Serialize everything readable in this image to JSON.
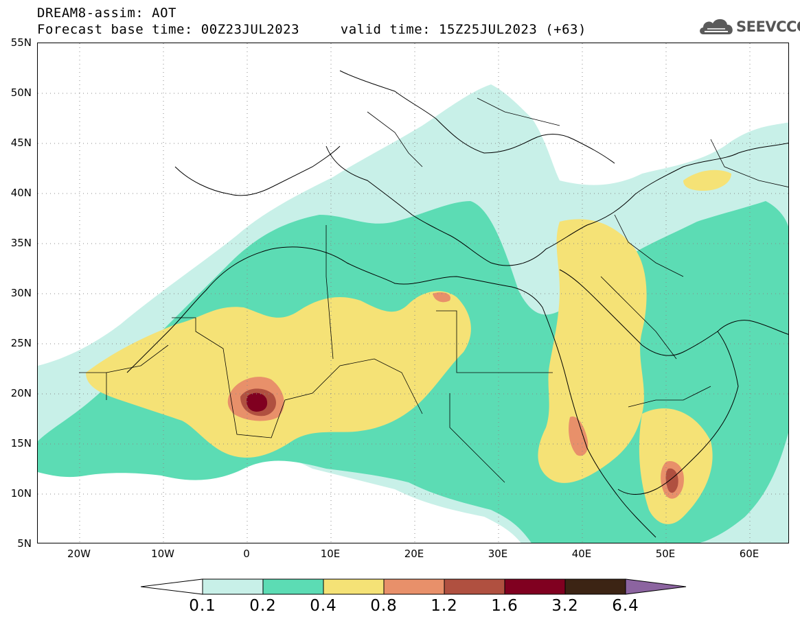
{
  "header": {
    "model_line": "DREAM8-assim: AOT",
    "forecast_base_label": "Forecast base time: 00Z23JUL2023",
    "valid_time_label": "valid time: 15Z25JUL2023 (+63)"
  },
  "logo": {
    "text": "SEEVCCC",
    "icon": "cloud-icon"
  },
  "map": {
    "lon_range": [
      -25,
      65
    ],
    "lat_range": [
      5,
      55
    ],
    "grid": "dotted",
    "lat_labels": [
      "55N",
      "50N",
      "45N",
      "40N",
      "35N",
      "30N",
      "25N",
      "20N",
      "15N",
      "10N",
      "5N"
    ],
    "lon_labels": [
      "20W",
      "10W",
      "0",
      "10E",
      "20E",
      "30E",
      "40E",
      "50E",
      "60E"
    ]
  },
  "colorbar": {
    "labels": [
      "0.1",
      "0.2",
      "0.4",
      "0.8",
      "1.2",
      "1.6",
      "3.2",
      "6.4"
    ],
    "colors": [
      "#ffffff",
      "#c8f0e8",
      "#5cdcb4",
      "#f5e276",
      "#e8906a",
      "#b05040",
      "#800020",
      "#3c2414",
      "#8c64a0"
    ]
  }
}
